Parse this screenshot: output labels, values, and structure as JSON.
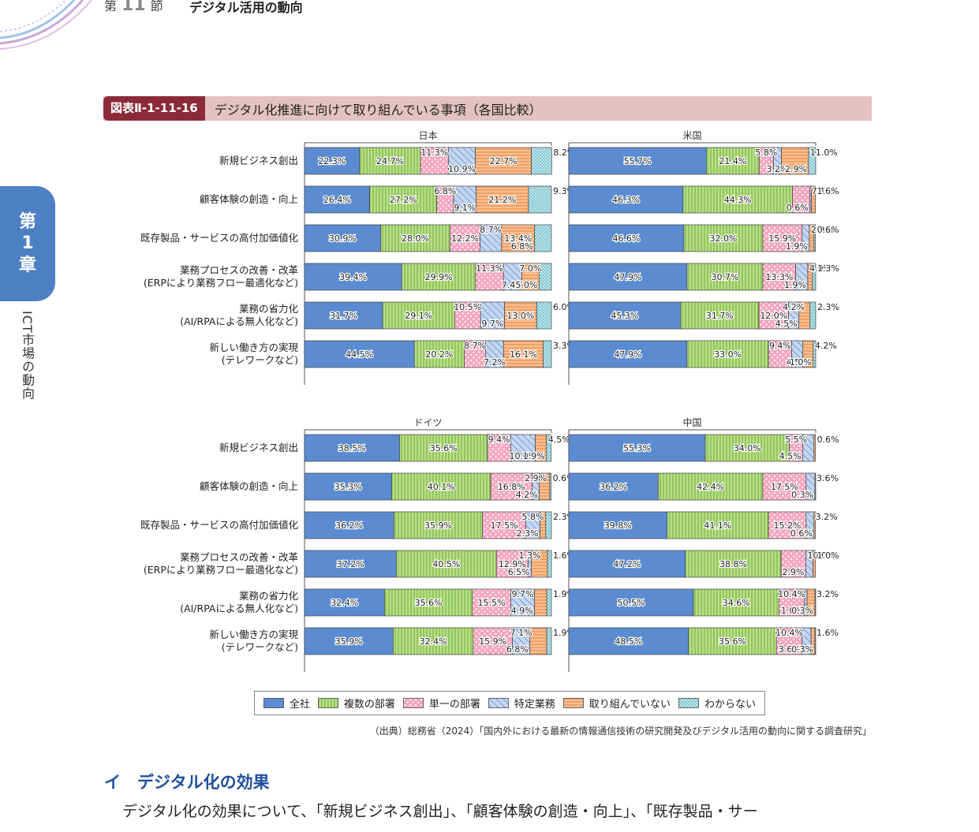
{
  "header": {
    "section_prefix": "第",
    "section_number": "11",
    "section_suffix": "節",
    "title": "デジタル活用の動向"
  },
  "chapter_tab": {
    "line1": "第",
    "line2": "1",
    "line3": "章"
  },
  "side_caption": "ICT市場の動向",
  "figure": {
    "label": "図表Ⅱ-1-11-16",
    "title": "デジタル化推進に向けて取り組んでいる事項（各国比較）"
  },
  "chart_data": {
    "type": "bar",
    "orientation": "horizontal-stacked-100",
    "categories": [
      [
        "新規ビジネス創出"
      ],
      [
        "顧客体験の創造・向上"
      ],
      [
        "既存製品・サービスの高付加価値化"
      ],
      [
        "業務プロセスの改善・改革",
        "(ERPにより業務フロー最適化など)"
      ],
      [
        "業務の省力化",
        "(AI/RPAによる無人化など)"
      ],
      [
        "新しい働き方の実現",
        "(テレワークなど)"
      ]
    ],
    "series": [
      {
        "name": "全社",
        "color": "#5b8bd0",
        "pattern": "solid"
      },
      {
        "name": "複数の部署",
        "color": "#a3d46a",
        "pattern": "vlines"
      },
      {
        "name": "単一の部署",
        "color": "#f39ab5",
        "pattern": "dots"
      },
      {
        "name": "特定業務",
        "color": "#a9c3e8",
        "pattern": "diagonal"
      },
      {
        "name": "取り組んでいない",
        "color": "#f5a66d",
        "pattern": "hlines"
      },
      {
        "name": "わからない",
        "color": "#8fd3dc",
        "pattern": "grid"
      }
    ],
    "panels": [
      {
        "country": "日本",
        "rows": [
          [
            22.3,
            24.7,
            11.3,
            10.9,
            22.7,
            8.2
          ],
          [
            26.4,
            27.2,
            6.8,
            9.1,
            21.2,
            9.3
          ],
          [
            30.9,
            28.0,
            12.2,
            8.7,
            13.4,
            6.8
          ],
          [
            39.4,
            29.9,
            11.3,
            7.4,
            7.0,
            5.0
          ],
          [
            31.7,
            29.1,
            10.5,
            9.7,
            13.0,
            6.0
          ],
          [
            44.5,
            20.2,
            8.7,
            7.2,
            16.1,
            3.3
          ]
        ]
      },
      {
        "country": "米国",
        "rows": [
          [
            55.7,
            21.4,
            5.8,
            3.2,
            11.0,
            2.9
          ],
          [
            46.3,
            44.3,
            7.1,
            0.6,
            1.6,
            0.0
          ],
          [
            46.6,
            32.0,
            15.9,
            2.9,
            1.9,
            0.6
          ],
          [
            47.9,
            30.7,
            13.3,
            4.9,
            1.9,
            1.3
          ],
          [
            45.3,
            31.7,
            12.0,
            4.2,
            4.5,
            2.3
          ],
          [
            47.9,
            33.0,
            9.4,
            4.5,
            4.2,
            1.0
          ]
        ]
      },
      {
        "country": "ドイツ",
        "rows": [
          [
            38.5,
            35.6,
            9.4,
            10.0,
            4.5,
            1.9
          ],
          [
            35.3,
            40.1,
            16.8,
            2.9,
            4.2,
            0.6
          ],
          [
            36.2,
            35.9,
            17.5,
            5.8,
            2.3,
            2.3
          ],
          [
            37.2,
            40.5,
            12.9,
            1.3,
            6.5,
            1.6
          ],
          [
            32.4,
            35.6,
            15.5,
            9.7,
            4.9,
            1.9
          ],
          [
            35.9,
            32.4,
            15.9,
            7.1,
            6.8,
            1.9
          ]
        ]
      },
      {
        "country": "中国",
        "rows": [
          [
            55.3,
            34.0,
            5.5,
            4.5,
            0.6,
            0.0
          ],
          [
            36.2,
            42.4,
            17.5,
            3.6,
            0.3,
            0.0
          ],
          [
            39.8,
            41.1,
            15.2,
            3.2,
            0.6,
            0.0
          ],
          [
            47.2,
            38.8,
            10.0,
            2.9,
            1.0,
            0.0
          ],
          [
            50.5,
            34.6,
            10.4,
            1.0,
            3.2,
            0.3
          ],
          [
            48.5,
            35.6,
            10.4,
            3.6,
            1.6,
            0.3
          ]
        ]
      }
    ],
    "xlim": [
      0,
      100
    ],
    "legend_position": "bottom"
  },
  "source": "（出典）総務省（2024）「国内外における最新の情報通信技術の研究開発及びデジタル活用の動向に関する調査研究」",
  "section_heading": "イ　デジタル化の効果",
  "body_text": "デジタル化の効果について、「新規ビジネス創出」、「顧客体験の創造・向上」、「既存製品・サー"
}
